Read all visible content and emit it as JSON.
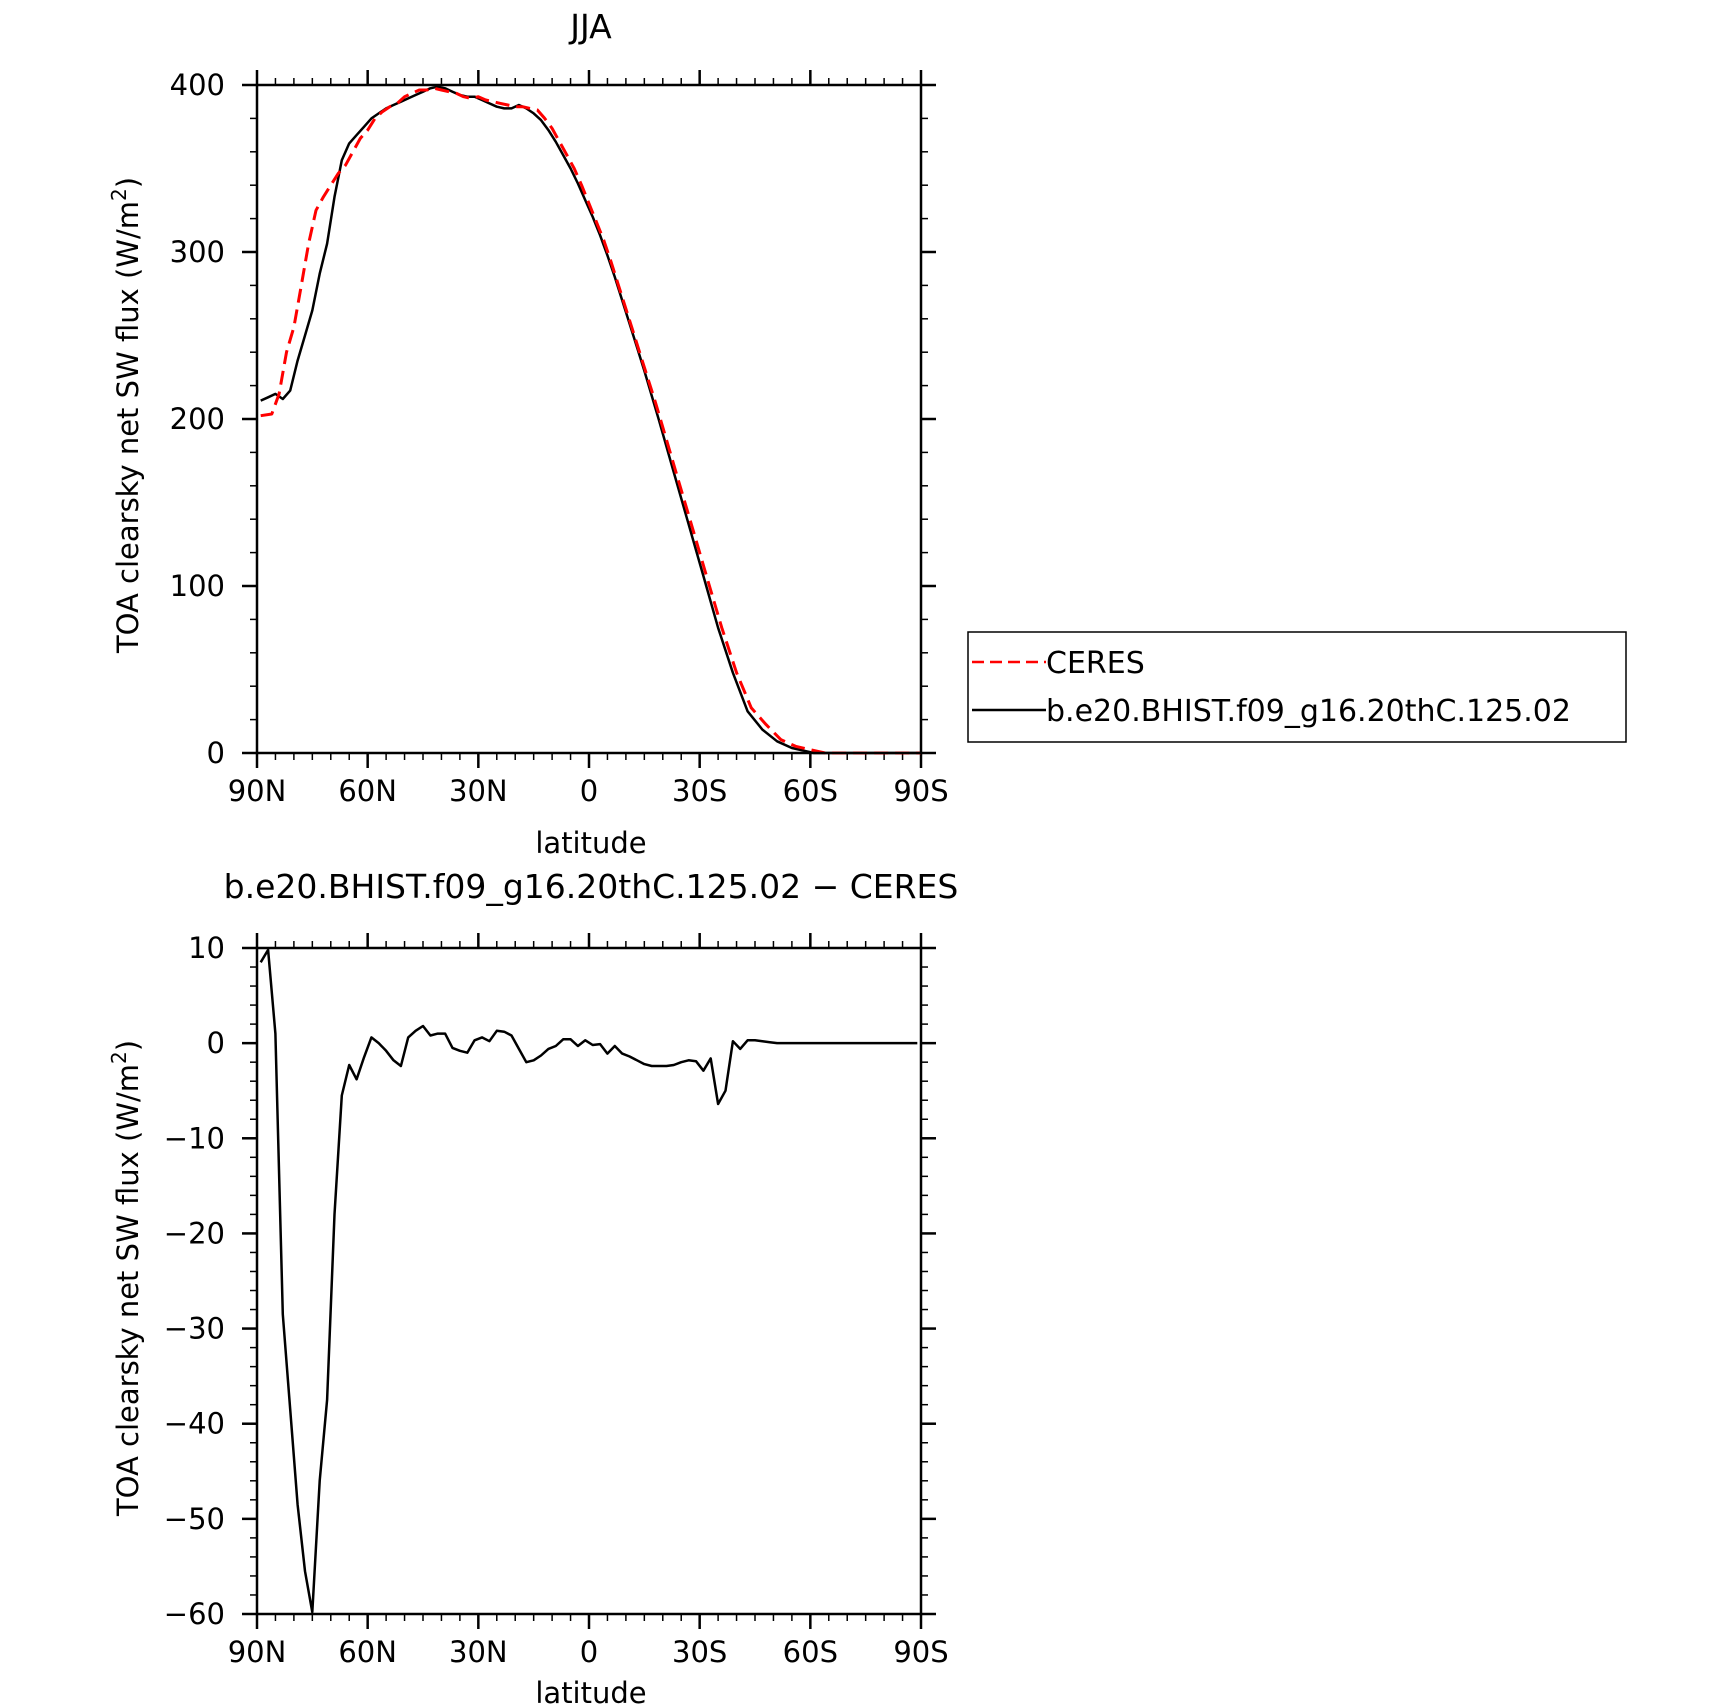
{
  "chart_data": [
    {
      "type": "line",
      "title": "JJA",
      "xlabel": "latitude",
      "ylabel": "TOA clearsky net SW flux (W/m",
      "ylabel_sup": "2",
      "ylabel_close": ")",
      "xlim": [
        90,
        -90
      ],
      "ylim": [
        0,
        400
      ],
      "x_ticks": [
        90,
        60,
        30,
        0,
        -30,
        -60,
        -90
      ],
      "x_tick_labels": [
        "90N",
        "60N",
        "30N",
        "0",
        "30S",
        "60S",
        "90S"
      ],
      "y_ticks": [
        0,
        100,
        200,
        300,
        400
      ],
      "y_tick_labels": [
        "0",
        "100",
        "200",
        "300",
        "400"
      ],
      "legend_position": "right",
      "series": [
        {
          "name": "CERES",
          "color": "#ff0000",
          "dash": "dashed",
          "x": [
            89,
            86,
            84,
            82,
            80,
            78,
            76,
            74,
            72,
            70,
            68,
            66,
            64,
            62,
            60,
            58,
            56,
            54,
            52,
            50,
            48,
            46,
            44,
            42,
            40,
            38,
            36,
            34,
            32,
            30,
            28,
            26,
            24,
            22,
            20,
            18,
            16,
            14,
            12,
            10,
            8,
            6,
            4,
            2,
            0,
            -2,
            -4,
            -6,
            -8,
            -10,
            -12,
            -14,
            -16,
            -18,
            -20,
            -24,
            -28,
            -32,
            -36,
            -40,
            -44,
            -48,
            -52,
            -56,
            -60,
            -62,
            -64,
            -66,
            -68,
            -70,
            -72,
            -74,
            -76,
            -78,
            -80,
            -82,
            -84,
            -86,
            -88,
            -90
          ],
          "y": [
            202,
            203,
            215,
            240,
            255,
            280,
            305,
            325,
            333,
            340,
            347,
            352,
            360,
            368,
            373,
            380,
            384,
            387,
            389,
            393,
            395,
            397,
            397,
            398,
            397,
            396,
            395,
            393,
            392,
            393,
            391,
            390,
            389,
            388,
            387,
            387,
            386,
            385,
            380,
            374,
            366,
            358,
            350,
            340,
            329,
            318,
            307,
            294,
            280,
            266,
            252,
            238,
            224,
            210,
            195,
            165,
            135,
            105,
            75,
            48,
            27,
            17,
            8,
            4,
            2,
            1,
            0,
            0,
            0,
            0,
            0,
            0,
            0,
            0,
            0,
            0,
            0,
            0,
            0,
            0
          ]
        },
        {
          "name": "b.e20.BHIST.f09_g16.20thC.125.02",
          "color": "#000000",
          "dash": "solid",
          "x": [
            89,
            87,
            85,
            83,
            81,
            79,
            77,
            75,
            73,
            71,
            69,
            67,
            65,
            63,
            61,
            59,
            57,
            55,
            53,
            51,
            49,
            47,
            45,
            43,
            41,
            39,
            37,
            35,
            33,
            31,
            29,
            27,
            25,
            23,
            21,
            19,
            17,
            15,
            13,
            11,
            9,
            7,
            5,
            3,
            1,
            -1,
            -3,
            -5,
            -7,
            -9,
            -11,
            -13,
            -15,
            -17,
            -19,
            -23,
            -27,
            -31,
            -35,
            -39,
            -43,
            -47,
            -51,
            -55,
            -59,
            -61,
            -63,
            -65,
            -67,
            -69,
            -71,
            -73,
            -75,
            -77,
            -79,
            -81,
            -83,
            -85,
            -87,
            -89
          ],
          "y": [
            211,
            213,
            215,
            212,
            217,
            235,
            250,
            265,
            287,
            305,
            333,
            355,
            365,
            370,
            375,
            380,
            383,
            386,
            388,
            390,
            392,
            394,
            396,
            398,
            399,
            398,
            396,
            394,
            393,
            393,
            391,
            389,
            387,
            386,
            386,
            388,
            386,
            383,
            379,
            373,
            366,
            358,
            350,
            341,
            331,
            321,
            310,
            298,
            285,
            271,
            257,
            243,
            229,
            214,
            199,
            168,
            137,
            106,
            75,
            48,
            25,
            14,
            7,
            3,
            1,
            0,
            0,
            0,
            0,
            0,
            0,
            0,
            0,
            0,
            0,
            0,
            0,
            0,
            0,
            0
          ]
        }
      ]
    },
    {
      "type": "line",
      "title": "b.e20.BHIST.f09_g16.20thC.125.02 − CERES",
      "xlabel": "latitude",
      "ylabel": "TOA clearsky net SW flux (W/m",
      "ylabel_sup": "2",
      "ylabel_close": ")",
      "xlim": [
        90,
        -90
      ],
      "ylim": [
        -60,
        10
      ],
      "x_ticks": [
        90,
        60,
        30,
        0,
        -30,
        -60,
        -90
      ],
      "x_tick_labels": [
        "90N",
        "60N",
        "30N",
        "0",
        "30S",
        "60S",
        "90S"
      ],
      "y_ticks": [
        -60,
        -50,
        -40,
        -30,
        -20,
        -10,
        0,
        10
      ],
      "y_tick_labels": [
        "−60",
        "−50",
        "−40",
        "−30",
        "−20",
        "−10",
        "0",
        "10"
      ],
      "series": [
        {
          "color": "#000000",
          "dash": "solid",
          "x": [
            89,
            87,
            85,
            83,
            81,
            79,
            77,
            75,
            73,
            71,
            69,
            67,
            65,
            63,
            61,
            59,
            57,
            55,
            53,
            51,
            49,
            47,
            45,
            43,
            41,
            39,
            37,
            35,
            33,
            31,
            29,
            27,
            25,
            23,
            21,
            19,
            17,
            15,
            13,
            11,
            9,
            7,
            5,
            3,
            1,
            -1,
            -3,
            -5,
            -7,
            -9,
            -11,
            -13,
            -15,
            -17,
            -19,
            -21,
            -23,
            -25,
            -27,
            -29,
            -31,
            -33,
            -35,
            -37,
            -39,
            -41,
            -43,
            -45,
            -47,
            -49,
            -51,
            -53,
            -55,
            -57,
            -59,
            -61,
            -63,
            -65,
            -67,
            -69,
            -71,
            -73,
            -75,
            -77,
            -79,
            -81,
            -83,
            -85,
            -87,
            -89
          ],
          "y": [
            8.5,
            9.8,
            1.0,
            -28.5,
            -38.5,
            -48.5,
            -55.5,
            -59.8,
            -46.0,
            -37.5,
            -18.0,
            -5.5,
            -2.3,
            -3.8,
            -1.5,
            0.6,
            0.0,
            -0.8,
            -1.8,
            -2.4,
            0.6,
            1.3,
            1.8,
            0.8,
            1.0,
            1.0,
            -0.5,
            -0.8,
            -1.0,
            0.3,
            0.6,
            0.2,
            1.3,
            1.2,
            0.8,
            -0.6,
            -2.0,
            -1.8,
            -1.3,
            -0.6,
            -0.3,
            0.4,
            0.4,
            -0.3,
            0.3,
            -0.2,
            -0.1,
            -1.1,
            -0.3,
            -1.1,
            -1.4,
            -1.8,
            -2.2,
            -2.4,
            -2.4,
            -2.4,
            -2.3,
            -2.0,
            -1.8,
            -1.9,
            -2.9,
            -1.6,
            -6.4,
            -5.0,
            0.2,
            -0.6,
            0.3,
            0.3,
            0.2,
            0.1,
            0.0,
            0.0,
            0.0,
            0.0,
            0.0,
            0.0,
            0.0,
            0.0,
            0.0,
            0.0,
            0.0,
            0.0,
            0.0,
            0.0,
            0.0,
            0.0,
            0.0,
            0.0,
            0.0,
            0.0
          ]
        }
      ]
    }
  ]
}
